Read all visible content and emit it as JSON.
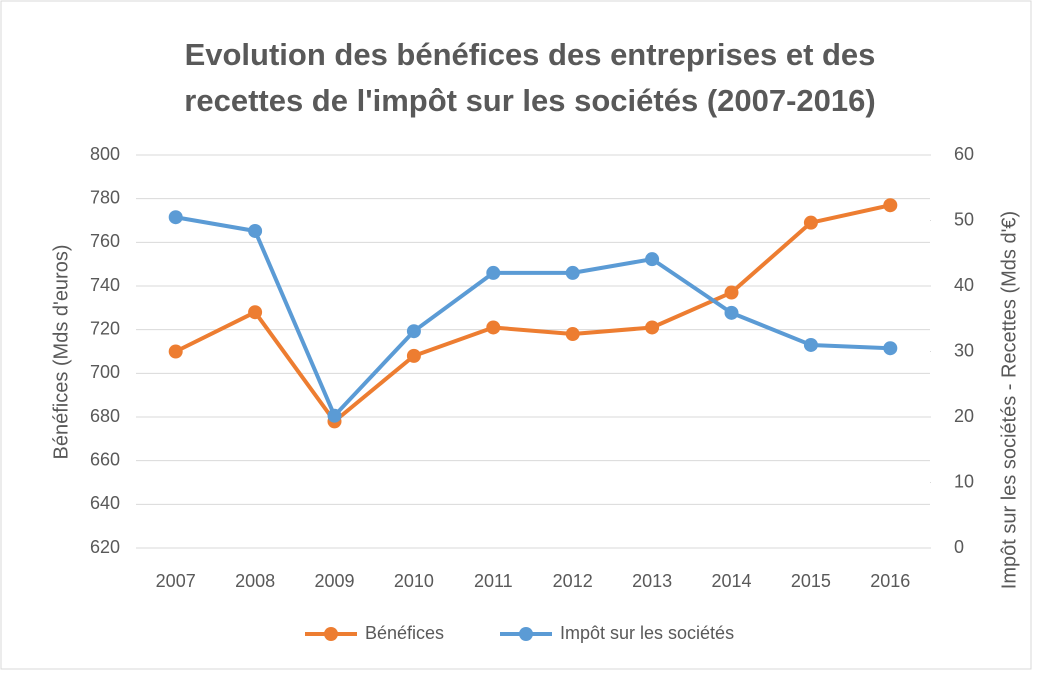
{
  "chart_data": {
    "type": "line",
    "title": "Evolution des bénéfices des entreprises et des recettes de l'impôt sur les sociétés (2007-2016)",
    "y_label": "Bénéfices (Mds d'euros)",
    "y2_label": "Impôt sur les sociétés - Recettes (Mds d'€)",
    "categories": [
      "2007",
      "2008",
      "2009",
      "2010",
      "2011",
      "2012",
      "2013",
      "2014",
      "2015",
      "2016"
    ],
    "series": [
      {
        "name": "Bénéfices",
        "color": "#ed7d31",
        "values": [
          710,
          728,
          678,
          708,
          721,
          718,
          721,
          737,
          769,
          777
        ]
      },
      {
        "name": "Impôt sur les sociétés",
        "color": "#5b9bd5",
        "axis": "y2",
        "values": [
          50.5,
          48.4,
          20.2,
          33.1,
          42.0,
          42.0,
          44.1,
          35.9,
          31.0,
          30.5
        ]
      }
    ],
    "ylim": [
      620,
      800
    ],
    "yticks": [
      620,
      640,
      660,
      680,
      700,
      720,
      740,
      760,
      780,
      800
    ],
    "y2lim": [
      0,
      60
    ],
    "y2ticks": [
      0,
      10,
      20,
      30,
      40,
      50,
      60
    ],
    "grid": true,
    "legend": "bottom"
  }
}
